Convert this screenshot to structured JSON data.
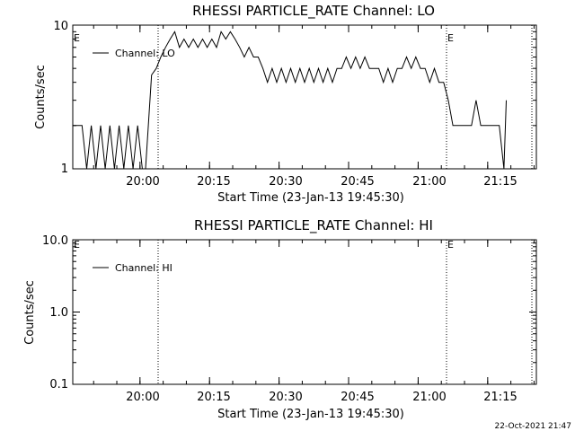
{
  "footer": {
    "timestamp": "22-Oct-2021 21:47"
  },
  "chart_data": [
    {
      "type": "line",
      "title": "RHESSI PARTICLE_RATE Channel: LO",
      "xlabel": "Start Time (23-Jan-13 19:45:30)",
      "ylabel": "Counts/sec",
      "yscale": "log",
      "ylim": [
        1,
        10
      ],
      "xlim_minutes": [
        0,
        100
      ],
      "y_tick_labels": [
        "1",
        "10"
      ],
      "x_tick_labels": [
        "20:00",
        "20:15",
        "20:30",
        "20:45",
        "21:00",
        "21:15"
      ],
      "legend": {
        "label": "Channel: LO",
        "position": "top-left"
      },
      "event_labels": [
        "E",
        "E"
      ],
      "event_marks_minutes": [
        16,
        76.5,
        94.5
      ],
      "series": [
        {
          "name": "Channel: LO",
          "x": [
            0,
            2,
            3,
            4,
            5,
            6,
            7,
            8,
            9,
            10,
            11,
            12,
            13,
            14,
            15,
            15.7,
            16.3,
            17,
            18,
            19,
            20,
            21,
            22,
            23,
            24,
            25,
            26,
            27,
            28,
            29,
            30,
            31,
            32,
            33,
            34,
            35,
            36,
            37,
            38,
            39,
            40,
            41,
            42,
            43,
            44,
            45,
            46,
            47,
            48,
            49,
            50,
            51,
            52,
            53,
            54,
            55,
            56,
            57,
            58,
            59,
            60,
            61,
            62,
            63,
            64,
            65,
            66,
            67,
            68,
            69,
            70,
            71,
            72,
            73,
            74,
            75,
            76,
            77,
            78,
            79,
            80,
            81,
            82,
            83,
            84,
            85,
            86,
            87,
            88,
            89,
            90,
            91,
            92,
            93,
            93.5
          ],
          "y": [
            2,
            2,
            1,
            2,
            1,
            2,
            1,
            2,
            1,
            2,
            1,
            2,
            1,
            2,
            1,
            1,
            2,
            4.5,
            5,
            6,
            7,
            8,
            9,
            7,
            8,
            7,
            8,
            7,
            8,
            7,
            8,
            7,
            9,
            8,
            9,
            8,
            7,
            6,
            7,
            6,
            6,
            5,
            4,
            5,
            4,
            5,
            4,
            5,
            4,
            5,
            4,
            5,
            4,
            5,
            4,
            5,
            4,
            5,
            5,
            6,
            5,
            6,
            5,
            6,
            5,
            5,
            5,
            4,
            5,
            4,
            5,
            5,
            6,
            5,
            6,
            5,
            5,
            4,
            5,
            4,
            4,
            3,
            2,
            2,
            2,
            2,
            2,
            3,
            2,
            2,
            2,
            2,
            2,
            1,
            3
          ]
        }
      ]
    },
    {
      "type": "line",
      "title": "RHESSI PARTICLE_RATE Channel: HI",
      "xlabel": "Start Time (23-Jan-13 19:45:30)",
      "ylabel": "Counts/sec",
      "yscale": "log",
      "ylim": [
        0.1,
        10
      ],
      "xlim_minutes": [
        0,
        100
      ],
      "y_tick_labels": [
        "0.1",
        "1.0",
        "10.0"
      ],
      "x_tick_labels": [
        "20:00",
        "20:15",
        "20:30",
        "20:45",
        "21:00",
        "21:15"
      ],
      "legend": {
        "label": "Channel: HI",
        "position": "top-left"
      },
      "event_labels": [
        "E",
        "E"
      ],
      "event_marks_minutes": [
        16,
        76.5,
        94.5
      ],
      "series": [
        {
          "name": "Channel: HI",
          "x": [],
          "y": []
        }
      ]
    }
  ]
}
